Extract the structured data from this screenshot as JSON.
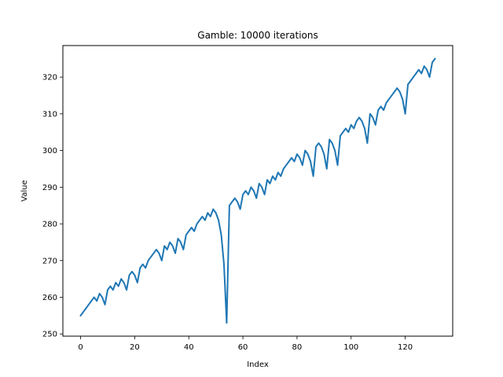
{
  "chart_data": {
    "type": "line",
    "title": "Gamble: 10000 iterations",
    "xlabel": "Index",
    "ylabel": "Value",
    "xlim": [
      -6.55,
      137.55
    ],
    "ylim": [
      249.4,
      328.6
    ],
    "xticks": [
      0,
      20,
      40,
      60,
      80,
      100,
      120
    ],
    "yticks": [
      250,
      260,
      270,
      280,
      290,
      300,
      310,
      320
    ],
    "grid": false,
    "line_color": "#1f77b4",
    "series": [
      {
        "values": [
          255,
          256,
          257,
          258,
          259,
          260,
          259,
          261,
          260,
          258,
          262,
          263,
          262,
          264,
          263,
          265,
          264,
          262,
          266,
          267,
          266,
          264,
          268,
          269,
          268,
          270,
          271,
          272,
          273,
          272,
          270,
          274,
          273,
          275,
          274,
          272,
          276,
          275,
          273,
          277,
          278,
          279,
          278,
          280,
          281,
          282,
          281,
          283,
          282,
          284,
          283,
          281,
          277,
          269,
          253,
          285,
          286,
          287,
          286,
          284,
          288,
          289,
          288,
          290,
          289,
          287,
          291,
          290,
          288,
          292,
          291,
          293,
          292,
          294,
          293,
          295,
          296,
          297,
          298,
          297,
          299,
          298,
          296,
          300,
          299,
          297,
          293,
          301,
          302,
          301,
          299,
          295,
          303,
          302,
          300,
          296,
          304,
          305,
          306,
          305,
          307,
          306,
          308,
          309,
          308,
          306,
          302,
          310,
          309,
          307,
          311,
          312,
          311,
          313,
          314,
          315,
          316,
          317,
          316,
          314,
          310,
          318,
          319,
          320,
          321,
          322,
          321,
          323,
          322,
          320,
          324,
          325
        ]
      }
    ]
  }
}
